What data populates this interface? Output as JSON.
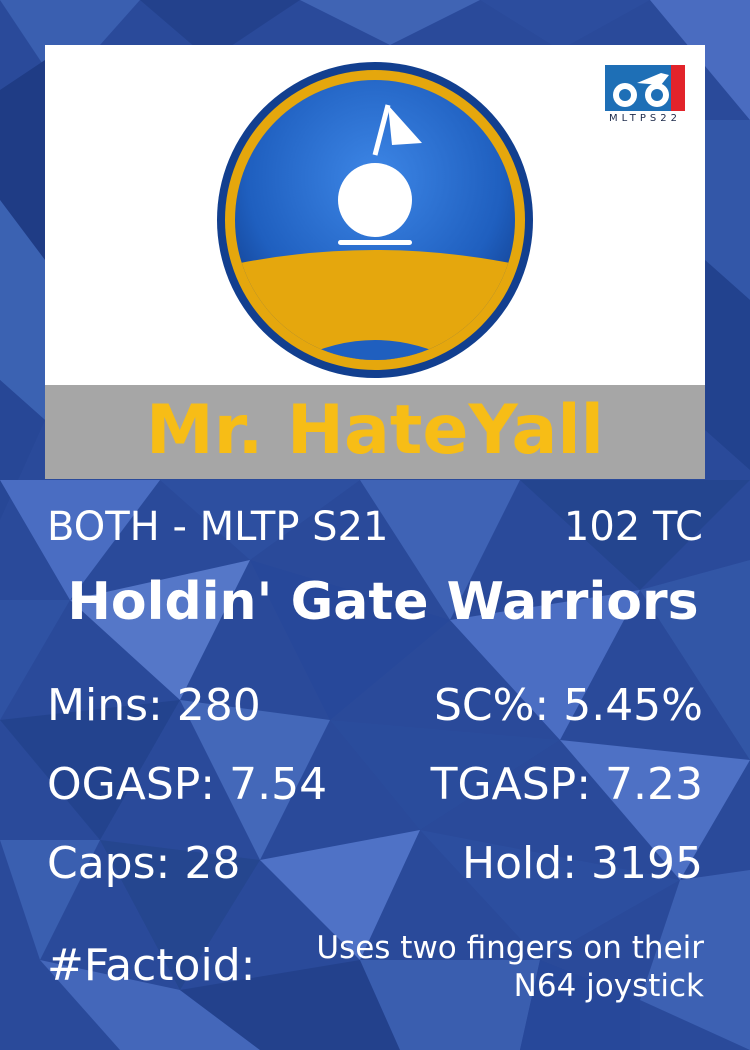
{
  "card": {
    "name": "Mr. HateYall",
    "position_line": "BOTH - MLTP S21",
    "tc": "102 TC",
    "team": "Holdin' Gate Warriors",
    "stats": {
      "mins": "Mins: 280",
      "sc": "SC%: 5.45%",
      "ogasp": "OGASP: 7.54",
      "tgasp": "TGASP: 7.23",
      "caps": "Caps: 28",
      "hold": "Hold: 3195"
    },
    "factoid_label": "#Factoid:",
    "factoid_text": "Uses two fingers on their N64 joystick"
  },
  "branding": {
    "corner_logo_text": "MLTPS22",
    "team_logo_icon": "golf-ball-flag-badge-icon"
  },
  "colors": {
    "background": "#2a4a9a",
    "name_band": "#a6a6a6",
    "name_text": "#f7bd16",
    "badge_gold": "#e5a70d",
    "badge_blue": "#1f5fbf",
    "corner_blue": "#1e6fb6",
    "corner_red": "#e2232a"
  }
}
